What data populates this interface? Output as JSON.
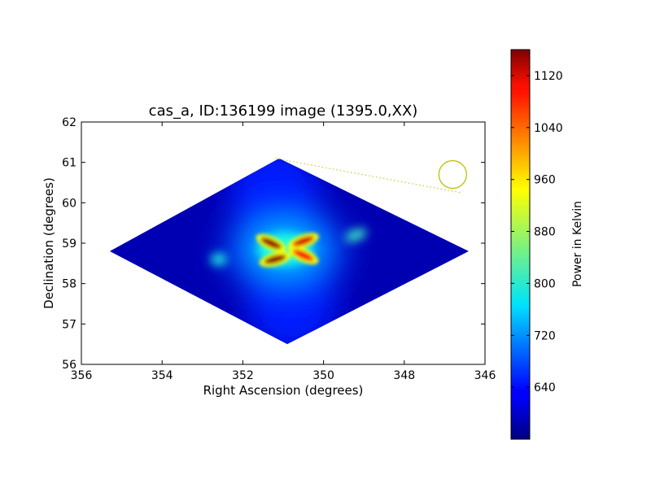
{
  "chart_data": {
    "type": "heatmap",
    "title": "cas_a, ID:136199 image (1395.0,XX)",
    "xlabel": "Right Ascension (degrees)",
    "ylabel": "Declination (degrees)",
    "xlim": [
      356,
      346
    ],
    "ylim": [
      56,
      62
    ],
    "x_ticks": [
      "356",
      "354",
      "352",
      "350",
      "348",
      "346"
    ],
    "y_ticks": [
      "56",
      "57",
      "58",
      "59",
      "60",
      "61",
      "62"
    ],
    "x_tick_values": [
      356,
      354,
      352,
      350,
      348,
      346
    ],
    "y_tick_values": [
      56,
      57,
      58,
      59,
      60,
      61,
      62
    ],
    "footprint_vertices_deg": [
      [
        351.1,
        61.1
      ],
      [
        346.4,
        58.8
      ],
      [
        350.9,
        56.5
      ],
      [
        355.3,
        58.8
      ]
    ],
    "background_level_K": 590,
    "source_peaks": [
      {
        "ra": 351.3,
        "dec": 59.0,
        "value": 1150
      },
      {
        "ra": 350.5,
        "dec": 59.05,
        "value": 1110
      },
      {
        "ra": 351.2,
        "dec": 58.6,
        "value": 1150
      },
      {
        "ra": 350.5,
        "dec": 58.7,
        "value": 1090
      }
    ],
    "beam_marker": {
      "ra": 346.8,
      "dec": 60.7,
      "color": "#bfbf00"
    },
    "colorbar": {
      "label": "Power in Kelvin",
      "min": 560,
      "max": 1160,
      "ticks": [
        "640",
        "720",
        "800",
        "880",
        "960",
        "1040",
        "1120"
      ],
      "tick_values": [
        640,
        720,
        800,
        880,
        960,
        1040,
        1120
      ],
      "colormap": "jet"
    },
    "grid": false
  }
}
